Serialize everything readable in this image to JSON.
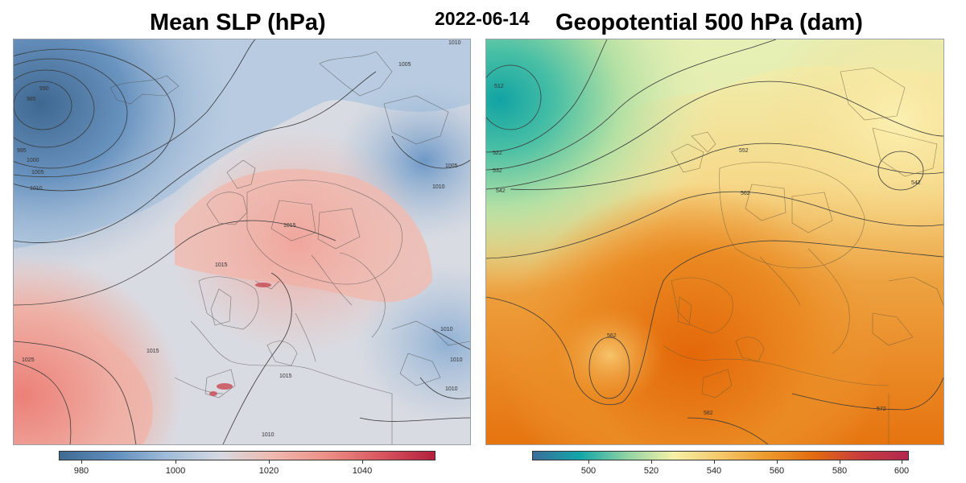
{
  "header": {
    "left_title": "Mean SLP (hPa)",
    "date": "2022-06-14",
    "right_title": "Geopotential 500 hPa (dam)"
  },
  "left_panel": {
    "colorbar": {
      "ticks": [
        "980",
        "1000",
        "1020",
        "1040"
      ],
      "range": [
        975,
        1055
      ],
      "colors": [
        "#3f6a91",
        "#5f8dbd",
        "#9fbbd9",
        "#d6d9e0",
        "#f0b8ae",
        "#ec8f86",
        "#d9565f",
        "#b41f3c"
      ]
    },
    "contour_labels": [
      "1010",
      "1005",
      "990",
      "985",
      "995",
      "1000",
      "1005",
      "1010",
      "1005",
      "1010",
      "1015",
      "1015",
      "1015",
      "1025",
      "1015",
      "1010",
      "1010",
      "1010",
      "1010"
    ]
  },
  "right_panel": {
    "colorbar": {
      "ticks": [
        "500",
        "520",
        "540",
        "560",
        "580",
        "600"
      ],
      "range": [
        487,
        603
      ],
      "colors": [
        "#3b6e9b",
        "#12a6a8",
        "#8fd3a4",
        "#f5f1a8",
        "#f5c86a",
        "#ec9a2c",
        "#e36b0f",
        "#c93c3e",
        "#b2284f"
      ]
    },
    "contour_labels": [
      "512",
      "522",
      "532",
      "542",
      "552",
      "562",
      "542",
      "562",
      "582",
      "572"
    ]
  }
}
